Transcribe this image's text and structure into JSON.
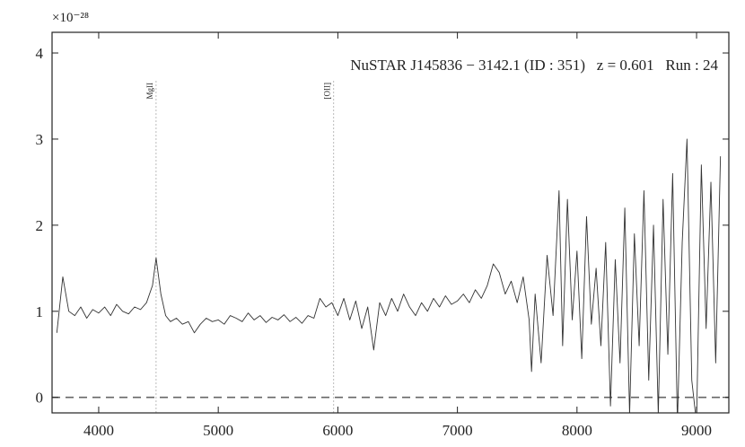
{
  "chart_data": {
    "type": "line",
    "title": "NuSTAR J145836 − 3142.1 (ID : 351)   z = 0.601   Run : 24",
    "offset_text": "×10⁻²⁸",
    "color": "#333333",
    "x": [
      3650,
      3700,
      3750,
      3800,
      3850,
      3900,
      3950,
      4000,
      4050,
      4100,
      4150,
      4200,
      4250,
      4300,
      4350,
      4400,
      4450,
      4480,
      4520,
      4560,
      4600,
      4650,
      4700,
      4750,
      4800,
      4850,
      4900,
      4950,
      5000,
      5050,
      5100,
      5150,
      5200,
      5250,
      5300,
      5350,
      5400,
      5450,
      5500,
      5550,
      5600,
      5650,
      5700,
      5750,
      5800,
      5850,
      5900,
      5950,
      6000,
      6050,
      6100,
      6150,
      6200,
      6250,
      6300,
      6350,
      6400,
      6450,
      6500,
      6550,
      6600,
      6650,
      6700,
      6750,
      6800,
      6850,
      6900,
      6950,
      7000,
      7050,
      7100,
      7150,
      7200,
      7250,
      7300,
      7350,
      7400,
      7450,
      7500,
      7550,
      7600,
      7620,
      7650,
      7700,
      7750,
      7800,
      7850,
      7880,
      7920,
      7960,
      8000,
      8040,
      8080,
      8120,
      8160,
      8200,
      8240,
      8280,
      8320,
      8360,
      8400,
      8440,
      8480,
      8520,
      8560,
      8600,
      8640,
      8680,
      8720,
      8760,
      8800,
      8840,
      8880,
      8920,
      8960,
      9000,
      9040,
      9080,
      9120,
      9160,
      9200
    ],
    "values": [
      0.75,
      1.4,
      1.0,
      0.95,
      1.05,
      0.92,
      1.02,
      0.98,
      1.05,
      0.95,
      1.08,
      1.0,
      0.97,
      1.05,
      1.02,
      1.1,
      1.3,
      1.62,
      1.2,
      0.95,
      0.88,
      0.92,
      0.85,
      0.88,
      0.75,
      0.85,
      0.92,
      0.88,
      0.9,
      0.85,
      0.95,
      0.92,
      0.88,
      0.98,
      0.9,
      0.95,
      0.87,
      0.93,
      0.9,
      0.96,
      0.88,
      0.93,
      0.86,
      0.95,
      0.92,
      1.15,
      1.05,
      1.1,
      0.95,
      1.15,
      0.9,
      1.12,
      0.8,
      1.05,
      0.55,
      1.1,
      0.95,
      1.15,
      1.0,
      1.2,
      1.05,
      0.95,
      1.1,
      1.0,
      1.15,
      1.05,
      1.18,
      1.08,
      1.12,
      1.2,
      1.1,
      1.25,
      1.15,
      1.3,
      1.55,
      1.45,
      1.2,
      1.35,
      1.1,
      1.4,
      0.9,
      0.3,
      1.2,
      0.4,
      1.65,
      0.95,
      2.4,
      0.6,
      2.3,
      0.9,
      1.7,
      0.45,
      2.1,
      0.85,
      1.5,
      0.6,
      1.8,
      -0.1,
      1.6,
      0.4,
      2.2,
      -0.2,
      1.9,
      0.6,
      2.4,
      0.2,
      2.0,
      -0.2,
      2.3,
      0.5,
      2.6,
      -0.3,
      1.8,
      3.0,
      0.2,
      -0.3,
      2.7,
      0.8,
      2.5,
      0.4,
      2.8
    ],
    "reference_line": 0,
    "lines": [
      {
        "x": 4480,
        "label": "MgII"
      },
      {
        "x": 5965,
        "label": "[OII]"
      }
    ],
    "xlim": [
      3610,
      9270
    ],
    "ylim": [
      -0.18,
      4.24
    ],
    "xticks": [
      4000,
      5000,
      6000,
      7000,
      8000,
      9000
    ],
    "yticks": [
      0,
      1,
      2,
      3,
      4
    ]
  }
}
